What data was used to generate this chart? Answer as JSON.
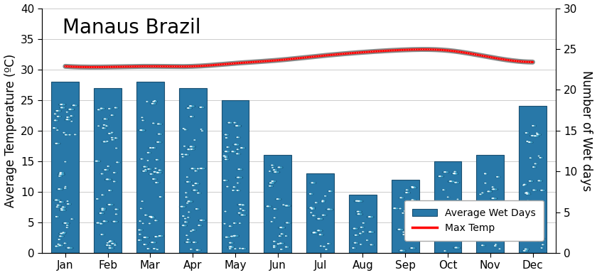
{
  "title": "Manaus Brazil",
  "months": [
    "Jan",
    "Feb",
    "Mar",
    "Apr",
    "May",
    "Jun",
    "Jul",
    "Aug",
    "Sep",
    "Oct",
    "Nov",
    "Dec"
  ],
  "wet_days": [
    28,
    27,
    28,
    27,
    25,
    16,
    13,
    9.5,
    12,
    15,
    16,
    24
  ],
  "max_temp": [
    30.5,
    30.4,
    30.5,
    30.5,
    31.0,
    31.5,
    32.2,
    32.8,
    33.2,
    33.1,
    32.0,
    31.2
  ],
  "bar_color_top": "#3b8fc0",
  "bar_color_bottom": "#1a5580",
  "bar_edge_color": "#1a4f70",
  "line_color": "#ff0000",
  "shadow_color": "#888888",
  "left_ylabel": "Average Temperature (ºC)",
  "right_ylabel": "Number of Wet days",
  "left_ylim": [
    0,
    40
  ],
  "right_ylim": [
    0,
    30
  ],
  "left_yticks": [
    0,
    5,
    10,
    15,
    20,
    25,
    30,
    35,
    40
  ],
  "right_yticks": [
    0,
    5,
    10,
    15,
    20,
    25,
    30
  ],
  "legend_wet_label": "Average Wet Days",
  "legend_temp_label": "Max Temp",
  "title_fontsize": 20,
  "axis_label_fontsize": 12,
  "tick_fontsize": 11,
  "bar_width": 0.65
}
